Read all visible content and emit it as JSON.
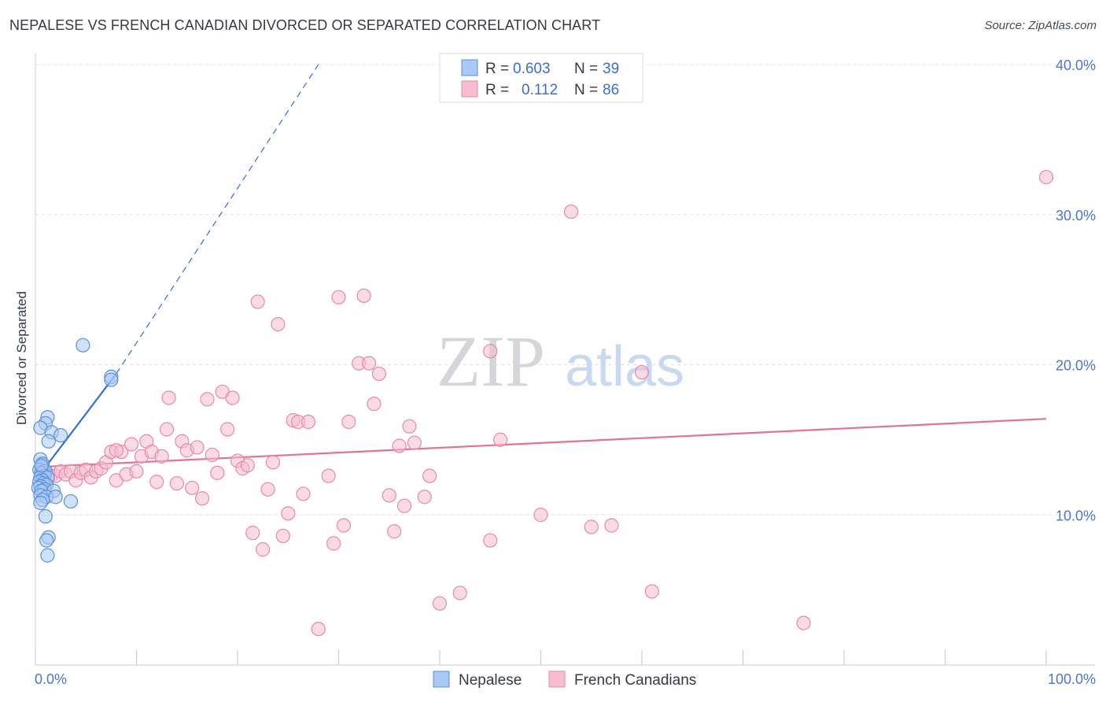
{
  "title": "NEPALESE VS FRENCH CANADIAN DIVORCED OR SEPARATED CORRELATION CHART",
  "source": "Source: ZipAtlas.com",
  "watermark": {
    "zip": "ZIP",
    "atlas": "atlas"
  },
  "colors": {
    "blue_fill": "#a9c8f5",
    "blue_stroke": "#5b90dc",
    "blue_line": "#2f6fd6",
    "pink_fill": "#f6bccf",
    "pink_stroke": "#e58aab",
    "pink_line": "#e5709a",
    "tick_text": "#4a78c8",
    "grid": "#dfe3e8"
  },
  "legend": {
    "rows": [
      {
        "r_label": "R =",
        "r_value": "0.603",
        "n_label": "N =",
        "n_value": "39"
      },
      {
        "r_label": "R =",
        "r_value": "0.112",
        "n_label": "N =",
        "n_value": "86"
      }
    ]
  },
  "chart_data": {
    "type": "scatter",
    "xlabel": "",
    "ylabel": "Divorced or Separated",
    "xlim": [
      0,
      100
    ],
    "ylim": [
      0,
      40
    ],
    "x_tick_labels": [
      "0.0%",
      "100.0%"
    ],
    "y_ticks": [
      10,
      20,
      30,
      40
    ],
    "y_tick_labels": [
      "10.0%",
      "20.0%",
      "30.0%",
      "40.0%"
    ],
    "grid": true,
    "legend_position": "bottom-center",
    "series": [
      {
        "name": "Nepalese",
        "r": 0.603,
        "n": 39,
        "trend": {
          "x0": 0,
          "y0": 12.3,
          "x1": 8,
          "y1": 19.4,
          "dashed_to_x": 28,
          "dashed_to_y": 40.0
        },
        "points": [
          [
            0.5,
            13.7
          ],
          [
            0.7,
            13.4
          ],
          [
            0.6,
            13.2
          ],
          [
            0.4,
            13.0
          ],
          [
            0.8,
            12.9
          ],
          [
            1.0,
            12.9
          ],
          [
            0.6,
            12.8
          ],
          [
            0.9,
            12.6
          ],
          [
            0.5,
            12.5
          ],
          [
            1.2,
            12.5
          ],
          [
            0.7,
            12.3
          ],
          [
            0.4,
            12.2
          ],
          [
            0.8,
            12.1
          ],
          [
            1.1,
            12.0
          ],
          [
            0.5,
            11.9
          ],
          [
            0.3,
            11.8
          ],
          [
            0.9,
            11.7
          ],
          [
            0.6,
            11.6
          ],
          [
            1.8,
            11.6
          ],
          [
            0.5,
            11.3
          ],
          [
            1.1,
            11.2
          ],
          [
            2.0,
            11.2
          ],
          [
            0.7,
            11.0
          ],
          [
            0.5,
            10.8
          ],
          [
            3.5,
            10.9
          ],
          [
            1.0,
            9.9
          ],
          [
            1.3,
            8.5
          ],
          [
            1.1,
            8.3
          ],
          [
            1.2,
            7.3
          ],
          [
            1.2,
            16.5
          ],
          [
            1.0,
            16.1
          ],
          [
            0.5,
            15.8
          ],
          [
            1.6,
            15.5
          ],
          [
            2.5,
            15.3
          ],
          [
            1.3,
            14.9
          ],
          [
            7.5,
            19.2
          ],
          [
            7.5,
            19.0
          ],
          [
            4.7,
            21.3
          ],
          [
            0.6,
            13.3
          ]
        ]
      },
      {
        "name": "French Canadians",
        "r": 0.112,
        "n": 86,
        "trend": {
          "x0": 0.5,
          "y0": 13.2,
          "x1": 100,
          "y1": 16.4
        },
        "points": [
          [
            1.0,
            12.9
          ],
          [
            1.5,
            12.6
          ],
          [
            2.0,
            12.6
          ],
          [
            2.5,
            12.9
          ],
          [
            3.0,
            12.7
          ],
          [
            3.5,
            12.9
          ],
          [
            4.0,
            12.3
          ],
          [
            4.5,
            12.8
          ],
          [
            5.0,
            13.0
          ],
          [
            5.5,
            12.5
          ],
          [
            6.0,
            12.9
          ],
          [
            6.5,
            13.1
          ],
          [
            7.0,
            13.5
          ],
          [
            7.5,
            14.2
          ],
          [
            8.0,
            12.3
          ],
          [
            8.5,
            14.2
          ],
          [
            8.0,
            14.3
          ],
          [
            9.0,
            12.7
          ],
          [
            9.5,
            14.7
          ],
          [
            10.0,
            12.9
          ],
          [
            10.5,
            13.9
          ],
          [
            11.0,
            14.9
          ],
          [
            11.5,
            14.2
          ],
          [
            12.0,
            12.2
          ],
          [
            12.5,
            13.9
          ],
          [
            13.0,
            15.7
          ],
          [
            13.2,
            17.8
          ],
          [
            14.0,
            12.1
          ],
          [
            14.5,
            14.9
          ],
          [
            15.0,
            14.3
          ],
          [
            15.5,
            11.8
          ],
          [
            16.0,
            14.5
          ],
          [
            16.5,
            11.1
          ],
          [
            17.0,
            17.7
          ],
          [
            17.5,
            14.0
          ],
          [
            18.0,
            12.8
          ],
          [
            18.5,
            18.2
          ],
          [
            19.0,
            15.7
          ],
          [
            19.5,
            17.8
          ],
          [
            20.0,
            13.6
          ],
          [
            20.5,
            13.1
          ],
          [
            21.0,
            13.3
          ],
          [
            21.5,
            8.8
          ],
          [
            22.0,
            24.2
          ],
          [
            22.5,
            7.7
          ],
          [
            23.0,
            11.7
          ],
          [
            23.5,
            13.5
          ],
          [
            24.0,
            22.7
          ],
          [
            24.5,
            8.6
          ],
          [
            25.0,
            10.1
          ],
          [
            25.5,
            16.3
          ],
          [
            26.0,
            16.2
          ],
          [
            26.5,
            11.4
          ],
          [
            27.0,
            16.2
          ],
          [
            28.0,
            2.4
          ],
          [
            29.0,
            12.6
          ],
          [
            29.5,
            8.1
          ],
          [
            30.0,
            24.5
          ],
          [
            30.5,
            9.3
          ],
          [
            31.0,
            16.2
          ],
          [
            32.0,
            20.1
          ],
          [
            32.5,
            24.6
          ],
          [
            33.0,
            20.1
          ],
          [
            33.5,
            17.4
          ],
          [
            34.0,
            19.4
          ],
          [
            35.0,
            11.3
          ],
          [
            35.5,
            8.9
          ],
          [
            36.0,
            14.6
          ],
          [
            36.5,
            10.6
          ],
          [
            37.0,
            15.9
          ],
          [
            37.5,
            14.8
          ],
          [
            38.5,
            11.2
          ],
          [
            39.0,
            12.6
          ],
          [
            40.0,
            4.1
          ],
          [
            42.0,
            4.8
          ],
          [
            45.0,
            20.9
          ],
          [
            45.0,
            8.3
          ],
          [
            46.0,
            15.0
          ],
          [
            50.0,
            10.0
          ],
          [
            53.0,
            30.2
          ],
          [
            55.0,
            9.2
          ],
          [
            57.0,
            9.3
          ],
          [
            60.0,
            19.5
          ],
          [
            61.0,
            4.9
          ],
          [
            76.0,
            2.8
          ],
          [
            100.0,
            32.5
          ]
        ]
      }
    ]
  }
}
